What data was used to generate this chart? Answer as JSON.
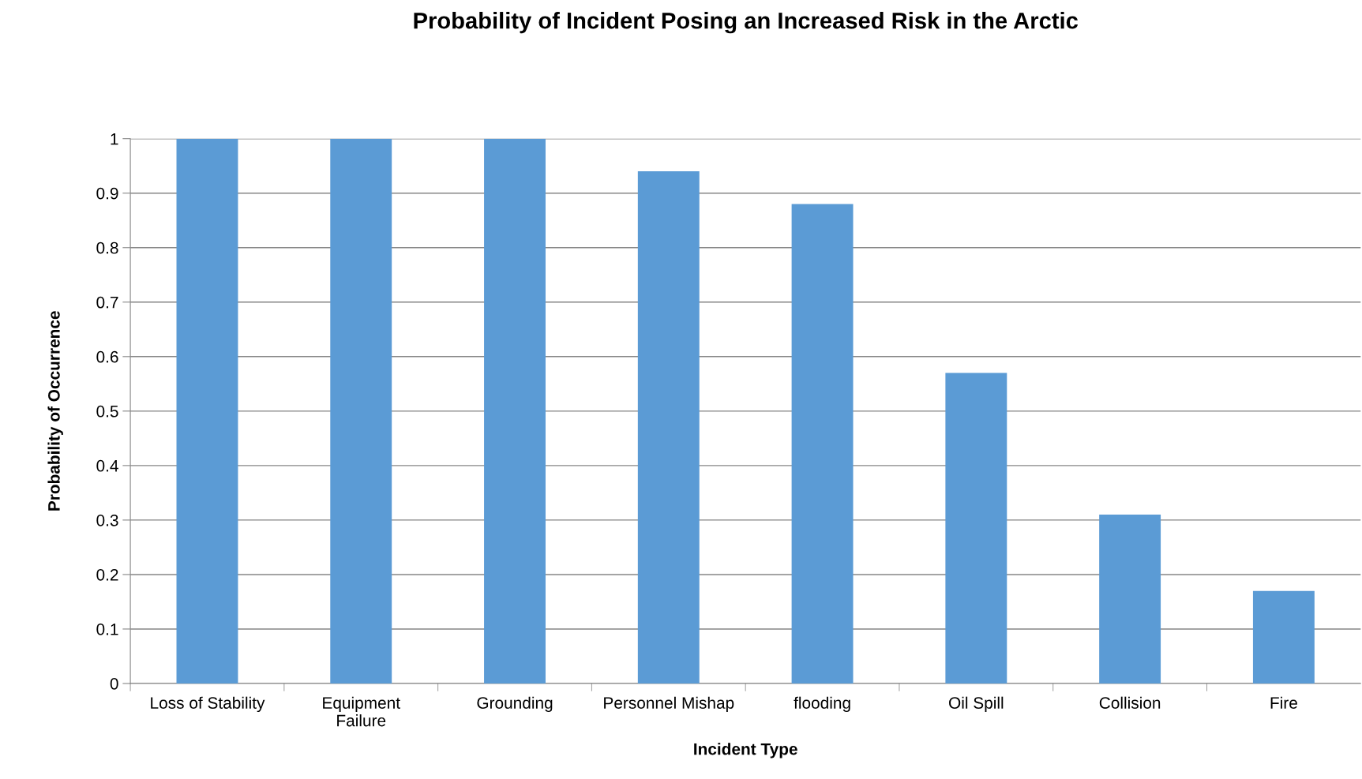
{
  "chart_data": {
    "type": "bar",
    "title": "Probability of Incident Posing an Increased Risk in the Arctic",
    "xlabel": "Incident Type",
    "ylabel": "Probability of Occurrence",
    "categories": [
      "Loss of Stability",
      "Equipment\nFailure",
      "Grounding",
      "Personnel Mishap",
      "flooding",
      "Oil Spill",
      "Collision",
      "Fire"
    ],
    "values": [
      1,
      1,
      1,
      0.94,
      0.88,
      0.57,
      0.31,
      0.17
    ],
    "color": "#5b9bd5",
    "ylim": [
      0,
      1
    ],
    "yticks": [
      0,
      {
        "value": 0.1,
        "label": "0.1"
      },
      {
        "value": 0.2,
        "label": "0.2"
      },
      {
        "value": 0.3,
        "label": "0.3"
      },
      {
        "value": 0.4,
        "label": "0.4"
      },
      {
        "value": 0.5,
        "label": "0.5"
      },
      {
        "value": 0.6,
        "label": "0.6"
      },
      {
        "value": 0.7,
        "label": "0.7"
      },
      {
        "value": 0.8,
        "label": "0.8"
      },
      {
        "value": 0.9,
        "label": "0.9"
      },
      1
    ],
    "grid": "y",
    "legend": false
  }
}
